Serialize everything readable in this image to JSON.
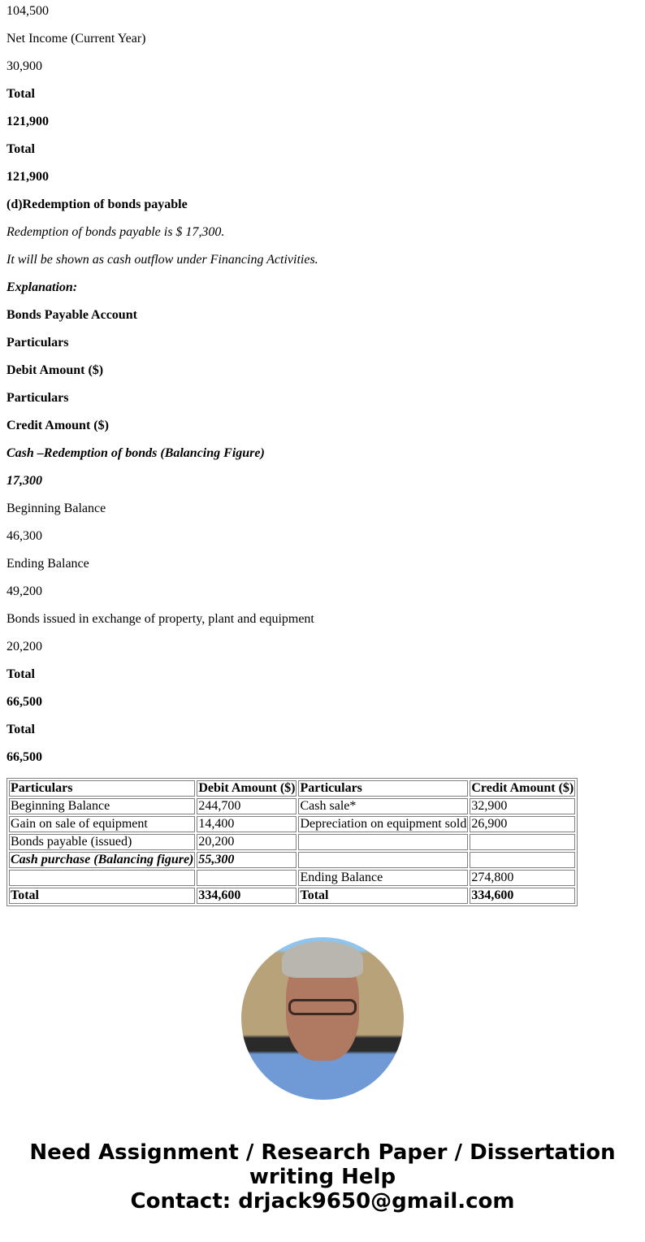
{
  "paragraphs": [
    {
      "text": "104,500",
      "style": ""
    },
    {
      "text": "Net Income (Current Year)",
      "style": ""
    },
    {
      "text": "30,900",
      "style": ""
    },
    {
      "text": "Total",
      "style": "b"
    },
    {
      "text": "121,900",
      "style": "b"
    },
    {
      "text": "Total",
      "style": "b"
    },
    {
      "text": "121,900",
      "style": "b"
    },
    {
      "text": "(d)Redemption of bonds payable",
      "style": "b"
    },
    {
      "text": "Redemption of bonds payable is $ 17,300.",
      "style": "i"
    },
    {
      "text": "It will be shown as cash outflow under Financing Activities.",
      "style": "i"
    },
    {
      "text": "Explanation:",
      "style": "b i"
    },
    {
      "text": "Bonds Payable Account",
      "style": "b"
    },
    {
      "text": "Particulars",
      "style": "b"
    },
    {
      "text": "Debit Amount ($)",
      "style": "b"
    },
    {
      "text": "Particulars",
      "style": "b"
    },
    {
      "text": "Credit Amount ($)",
      "style": "b"
    },
    {
      "text": "Cash –Redemption of bonds (Balancing Figure)",
      "style": "b i"
    },
    {
      "text": "17,300",
      "style": "b i"
    },
    {
      "text": "Beginning Balance",
      "style": ""
    },
    {
      "text": "46,300",
      "style": ""
    },
    {
      "text": "Ending Balance",
      "style": ""
    },
    {
      "text": "49,200",
      "style": ""
    },
    {
      "text": "Bonds issued in exchange of property, plant and equipment",
      "style": ""
    },
    {
      "text": "20,200",
      "style": ""
    },
    {
      "text": "Total",
      "style": "b"
    },
    {
      "text": "66,500",
      "style": "b"
    },
    {
      "text": "Total",
      "style": "b"
    },
    {
      "text": "66,500",
      "style": "b"
    }
  ],
  "table": {
    "rows": [
      {
        "style": "b",
        "cells": [
          "Particulars",
          "Debit Amount ($)",
          "Particulars",
          "Credit Amount ($)"
        ]
      },
      {
        "style": "",
        "cells": [
          "Beginning Balance",
          "244,700",
          "Cash sale*",
          "32,900"
        ]
      },
      {
        "style": "",
        "cells": [
          "Gain on sale of equipment",
          "14,400",
          "Depreciation on equipment sold",
          "26,900"
        ]
      },
      {
        "style": "",
        "cells": [
          "Bonds payable (issued)",
          "20,200",
          "",
          ""
        ]
      },
      {
        "style": "b i",
        "cells": [
          "Cash purchase (Balancing figure)",
          "55,300",
          "",
          ""
        ]
      },
      {
        "style": "",
        "cells": [
          "",
          "",
          "Ending Balance",
          "274,800"
        ]
      },
      {
        "style": "b",
        "cells": [
          "Total",
          "334,600",
          "Total",
          "334,600"
        ]
      }
    ]
  },
  "footer": {
    "line1": "Need Assignment / Research Paper / Dissertation",
    "line2": "writing Help",
    "line3": "Contact: drjack9650@gmail.com"
  }
}
